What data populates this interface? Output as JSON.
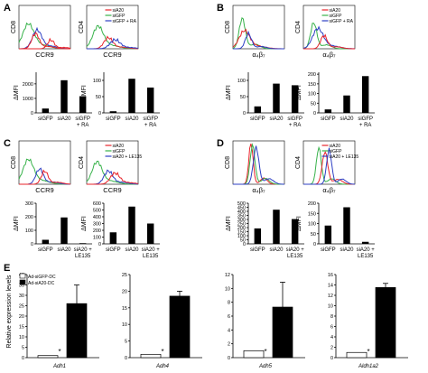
{
  "panels": [
    {
      "letter": "A",
      "colors": {
        "red": "#e8232a",
        "green": "#37b24a",
        "blue": "#2d3fc4"
      },
      "hist": [
        {
          "ylabel": "CD8",
          "xlabel": "CCR9",
          "legend": []
        },
        {
          "ylabel": "CD4",
          "xlabel": "CCR9",
          "legend": [
            "siA20",
            "siGFP",
            "siGFP + RA"
          ]
        }
      ],
      "bars": [
        {
          "ylabel": "ΔMFI",
          "ymax": 2800,
          "ticks": [
            0,
            1000,
            2000
          ],
          "categories": [
            "siGFP",
            "siA20",
            "siGFP\n+ RA"
          ],
          "values": [
            300,
            2250,
            1150
          ]
        },
        {
          "ylabel": "ΔMFI",
          "ymax": 125,
          "ticks": [
            0,
            50,
            100
          ],
          "categories": [
            "siGFP",
            "siA20",
            "siGFP\n+ RA"
          ],
          "values": [
            5,
            105,
            78
          ]
        }
      ]
    },
    {
      "letter": "B",
      "colors": {
        "red": "#e8232a",
        "green": "#37b24a",
        "blue": "#2d3fc4"
      },
      "hist": [
        {
          "ylabel": "CD8",
          "xlabel": "α₄β₇",
          "legend": []
        },
        {
          "ylabel": "CD4",
          "xlabel": "α₄β₇",
          "legend": [
            "siA20",
            "siGFP",
            "siGFP + RA"
          ]
        }
      ],
      "bars": [
        {
          "ylabel": "ΔMFI",
          "ymax": 125,
          "ticks": [
            0,
            50,
            100
          ],
          "categories": [
            "siGFP",
            "siA20",
            "siGFP\n+ RA"
          ],
          "values": [
            20,
            90,
            85
          ]
        },
        {
          "ylabel": "ΔMFI",
          "ymax": 210,
          "ticks": [
            0,
            50,
            100,
            150,
            200
          ],
          "categories": [
            "siGFP",
            "siA20",
            "siGFP\n+ RA"
          ],
          "values": [
            18,
            90,
            190
          ]
        }
      ]
    },
    {
      "letter": "C",
      "colors": {
        "red": "#e8232a",
        "green": "#37b24a",
        "blue": "#2d3fc4"
      },
      "hist": [
        {
          "ylabel": "CD8",
          "xlabel": "CCR9",
          "legend": []
        },
        {
          "ylabel": "CD4",
          "xlabel": "CCR9",
          "legend": [
            "siA20",
            "siGFP",
            "siA20 + LE135"
          ]
        }
      ],
      "bars": [
        {
          "ylabel": "ΔMFI",
          "ymax": 300,
          "ticks": [
            0,
            100,
            200,
            300
          ],
          "categories": [
            "siGFP",
            "siA20",
            "siA20 +\nLE135"
          ],
          "values": [
            30,
            195,
            5
          ]
        },
        {
          "ylabel": "ΔMFI",
          "ymax": 600,
          "ticks": [
            0,
            100,
            200,
            300,
            400,
            500,
            600
          ],
          "categories": [
            "siGFP",
            "siA20",
            "siA20 +\nLE135"
          ],
          "values": [
            170,
            550,
            300
          ]
        }
      ]
    },
    {
      "letter": "D",
      "colors": {
        "red": "#e8232a",
        "green": "#37b24a",
        "blue": "#2d3fc4"
      },
      "hist": [
        {
          "ylabel": "CD8",
          "xlabel": "α₄β₇",
          "legend": []
        },
        {
          "ylabel": "CD4",
          "xlabel": "α₄β₇",
          "legend": [
            "siA20",
            "siGFP",
            "siA20 + LE135"
          ]
        }
      ],
      "bars": [
        {
          "ylabel": "ΔMFI",
          "ymax": 500,
          "ticks": [
            0,
            50,
            100,
            150,
            200,
            250,
            300,
            350,
            400,
            450,
            500
          ],
          "categories": [
            "siGFP",
            "siA20",
            "siA20 +\nLE135"
          ],
          "values": [
            190,
            420,
            305
          ]
        },
        {
          "ylabel": "ΔMFI",
          "ymax": 200,
          "ticks": [
            0,
            50,
            100,
            150,
            200
          ],
          "categories": [
            "siGFP",
            "siA20",
            "siA20 +\nLE135"
          ],
          "values": [
            90,
            180,
            10
          ]
        }
      ]
    }
  ],
  "panel_e": {
    "letter": "E",
    "ylabel": "Relative expression levels",
    "legend": [
      "Ad-siGFP-DC",
      "Ad-siA20-DC"
    ],
    "star": "*",
    "charts": [
      {
        "gene": "Adh1",
        "ymax": 40,
        "ticks": [
          0,
          5,
          10,
          15,
          20,
          25,
          30,
          35,
          40
        ],
        "values": [
          1,
          26
        ],
        "errors": [
          0,
          9
        ]
      },
      {
        "gene": "Adh4",
        "ymax": 25,
        "ticks": [
          0,
          5,
          10,
          15,
          20,
          25
        ],
        "values": [
          1,
          18.5
        ],
        "errors": [
          0,
          1.5
        ]
      },
      {
        "gene": "Adh5",
        "ymax": 12,
        "ticks": [
          0,
          2,
          4,
          6,
          8,
          10,
          12
        ],
        "values": [
          1,
          7.3
        ],
        "errors": [
          0,
          3.6
        ]
      },
      {
        "gene": "Aldh1a2",
        "ymax": 16,
        "ticks": [
          0,
          2,
          4,
          6,
          8,
          10,
          12,
          14,
          16
        ],
        "values": [
          1,
          13.5
        ],
        "errors": [
          0,
          0.8
        ]
      }
    ]
  },
  "chart_data": [
    {
      "type": "bar",
      "title": "A CD8 CCR9",
      "categories": [
        "siGFP",
        "siA20",
        "siGFP + RA"
      ],
      "values": [
        300,
        2250,
        1150
      ],
      "ylabel": "ΔMFI",
      "ylim": [
        0,
        2800
      ]
    },
    {
      "type": "bar",
      "title": "A CD4 CCR9",
      "categories": [
        "siGFP",
        "siA20",
        "siGFP + RA"
      ],
      "values": [
        5,
        105,
        78
      ],
      "ylabel": "ΔMFI",
      "ylim": [
        0,
        125
      ]
    },
    {
      "type": "bar",
      "title": "B CD8 α4β7",
      "categories": [
        "siGFP",
        "siA20",
        "siGFP + RA"
      ],
      "values": [
        20,
        90,
        85
      ],
      "ylabel": "ΔMFI",
      "ylim": [
        0,
        125
      ]
    },
    {
      "type": "bar",
      "title": "B CD4 α4β7",
      "categories": [
        "siGFP",
        "siA20",
        "siGFP + RA"
      ],
      "values": [
        18,
        90,
        190
      ],
      "ylabel": "ΔMFI",
      "ylim": [
        0,
        210
      ]
    },
    {
      "type": "bar",
      "title": "C CD8 CCR9",
      "categories": [
        "siGFP",
        "siA20",
        "siA20 + LE135"
      ],
      "values": [
        30,
        195,
        5
      ],
      "ylabel": "ΔMFI",
      "ylim": [
        0,
        300
      ]
    },
    {
      "type": "bar",
      "title": "C CD4 CCR9",
      "categories": [
        "siGFP",
        "siA20",
        "siA20 + LE135"
      ],
      "values": [
        170,
        550,
        300
      ],
      "ylabel": "ΔMFI",
      "ylim": [
        0,
        600
      ]
    },
    {
      "type": "bar",
      "title": "D CD8 α4β7",
      "categories": [
        "siGFP",
        "siA20",
        "siA20 + LE135"
      ],
      "values": [
        190,
        420,
        305
      ],
      "ylabel": "ΔMFI",
      "ylim": [
        0,
        500
      ]
    },
    {
      "type": "bar",
      "title": "D CD4 α4β7",
      "categories": [
        "siGFP",
        "siA20",
        "siA20 + LE135"
      ],
      "values": [
        90,
        180,
        10
      ],
      "ylabel": "ΔMFI",
      "ylim": [
        0,
        200
      ]
    },
    {
      "type": "bar",
      "title": "E Adh1",
      "categories": [
        "Ad-siGFP-DC",
        "Ad-siA20-DC"
      ],
      "values": [
        1,
        26
      ],
      "ylabel": "Relative expression levels",
      "ylim": [
        0,
        40
      ]
    },
    {
      "type": "bar",
      "title": "E Adh4",
      "categories": [
        "Ad-siGFP-DC",
        "Ad-siA20-DC"
      ],
      "values": [
        1,
        18.5
      ],
      "ylabel": "Relative expression levels",
      "ylim": [
        0,
        25
      ]
    },
    {
      "type": "bar",
      "title": "E Adh5",
      "categories": [
        "Ad-siGFP-DC",
        "Ad-siA20-DC"
      ],
      "values": [
        1,
        7.3
      ],
      "ylabel": "Relative expression levels",
      "ylim": [
        0,
        12
      ]
    },
    {
      "type": "bar",
      "title": "E Aldh1a2",
      "categories": [
        "Ad-siGFP-DC",
        "Ad-siA20-DC"
      ],
      "values": [
        1,
        13.5
      ],
      "ylabel": "Relative expression levels",
      "ylim": [
        0,
        16
      ]
    }
  ]
}
